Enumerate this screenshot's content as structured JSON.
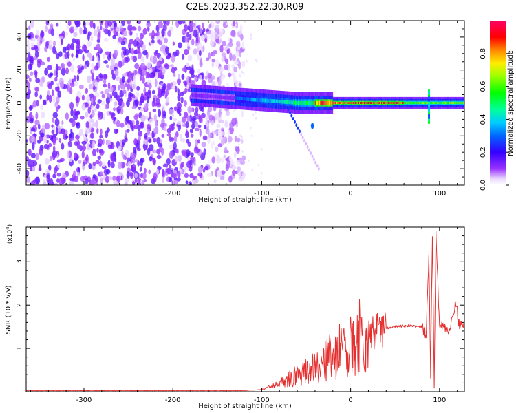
{
  "figure_title": "C2E5.2023.352.22.30.R09",
  "colorbar": {
    "label": "Normalized spectral amplitude",
    "ticks": [
      "0.0",
      "0.2",
      "0.4",
      "0.6",
      "0.8"
    ]
  },
  "chart_data": [
    {
      "type": "heatmap",
      "title": "C2E5.2023.352.22.30.R09",
      "xlabel": "Height of straight line (km)",
      "ylabel": "Frequency (Hz)",
      "xlim": [
        -365,
        128
      ],
      "ylim": [
        -50,
        50
      ],
      "xticks": [
        -300,
        -200,
        -100,
        0,
        100
      ],
      "xtick_labels": [
        "-300",
        "-200",
        "-100",
        "0",
        "100"
      ],
      "yticks": [
        -40,
        -20,
        0,
        20,
        40
      ],
      "ytick_labels": [
        "-40",
        "-20",
        "0",
        "20",
        "40"
      ],
      "value_range": [
        0,
        1
      ],
      "colormap": "spectral (white-purple-blue-cyan-green-yellow-red-magenta)",
      "features": {
        "noise_region_x": [
          -365,
          -130
        ],
        "signal_line_frequency_hz": 0,
        "signal_start_x": -130,
        "peak_amplitude_region_x": [
          -40,
          60
        ]
      }
    },
    {
      "type": "line",
      "xlabel": "Height of straight line (km)",
      "ylabel": "SNR (10 * v/v)",
      "y_multiplier": "(x10",
      "y_multiplier_exp": "4",
      "y_multiplier_close": ")",
      "xlim": [
        -365,
        128
      ],
      "ylim": [
        0,
        3.8
      ],
      "xticks": [
        -300,
        -200,
        -100,
        0,
        100
      ],
      "xtick_labels": [
        "-300",
        "-200",
        "-100",
        "0",
        "100"
      ],
      "yticks": [
        1,
        2,
        3
      ],
      "ytick_labels": [
        "1",
        "2",
        "3"
      ],
      "color": "#e53030",
      "series": [
        {
          "x": [
            -365,
            -300,
            -200,
            -120,
            -100,
            -90,
            -80,
            -70,
            -60,
            -50,
            -40,
            -30,
            -20,
            -10,
            0,
            10,
            20,
            30,
            40,
            50,
            60,
            70,
            75,
            80,
            85,
            88,
            90,
            92,
            94,
            96,
            100,
            110,
            115,
            118,
            122,
            128
          ],
          "y": [
            0.02,
            0.02,
            0.02,
            0.02,
            0.05,
            0.12,
            0.2,
            0.3,
            0.38,
            0.45,
            0.55,
            0.7,
            0.85,
            1.0,
            1.1,
            1.25,
            1.35,
            1.42,
            1.47,
            1.5,
            1.52,
            1.52,
            1.5,
            1.5,
            1.3,
            3.2,
            0.4,
            3.7,
            0.2,
            3.6,
            1.55,
            1.45,
            1.7,
            2.1,
            1.55,
            1.5
          ]
        }
      ]
    }
  ]
}
